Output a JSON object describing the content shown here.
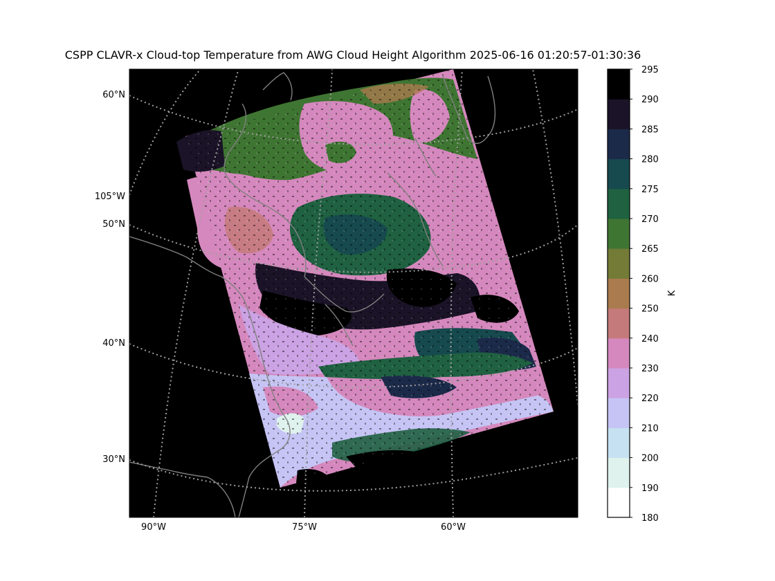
{
  "title": "CSPP CLAVR-x Cloud-top Temperature from AWG Cloud Height Algorithm 2025-06-16 01:20:57-01:30:36",
  "chart_data": {
    "type": "heatmap",
    "title": "CSPP CLAVR-x Cloud-top Temperature from AWG Cloud Height Algorithm 2025-06-16 01:20:57-01:30:36",
    "lat_ticks": [
      "60°N",
      "50°N",
      "40°N",
      "30°N"
    ],
    "lon_left_tick": "105°W",
    "lon_bottom_ticks": [
      "90°W",
      "75°W",
      "60°W"
    ],
    "colorbar": {
      "label": "K",
      "boundaries": [
        180,
        190,
        200,
        210,
        220,
        230,
        240,
        250,
        260,
        265,
        270,
        275,
        280,
        285,
        290,
        295
      ],
      "colors": [
        "#ffffff",
        "#dff2ee",
        "#c6e1f1",
        "#c5c4f4",
        "#cba2e3",
        "#d588bd",
        "#c47a7a",
        "#a97b4e",
        "#737b36",
        "#3f7532",
        "#1f6141",
        "#164a4e",
        "#1c2a4a",
        "#1b1327",
        "#000000"
      ]
    },
    "gridlines": "dotted",
    "background": "#000000"
  }
}
